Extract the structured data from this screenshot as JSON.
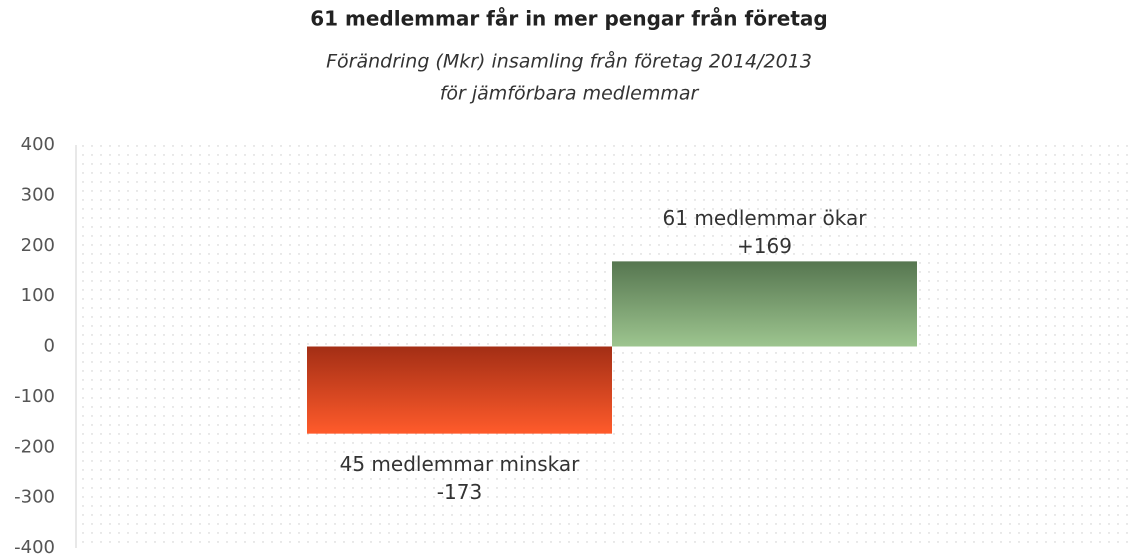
{
  "chart_data": {
    "type": "bar",
    "title": "61 medlemmar får in mer pengar från företag",
    "subtitle": [
      "Förändring (Mkr) insamling från företag 2014/2013",
      "för jämförbara medlemmar"
    ],
    "categories": [
      "45 medlemmar minskar",
      "61 medlemmar ökar"
    ],
    "values": [
      -173,
      169
    ],
    "value_labels": [
      "-173",
      "+169"
    ],
    "colors": [
      [
        "#a32e15",
        "#ff5b2b"
      ],
      [
        "#567650",
        "#9dc58f"
      ]
    ],
    "ylim": [
      -400,
      400
    ],
    "yticks": [
      -400,
      -300,
      -200,
      -100,
      0,
      100,
      200,
      300,
      400
    ],
    "grid": false
  }
}
